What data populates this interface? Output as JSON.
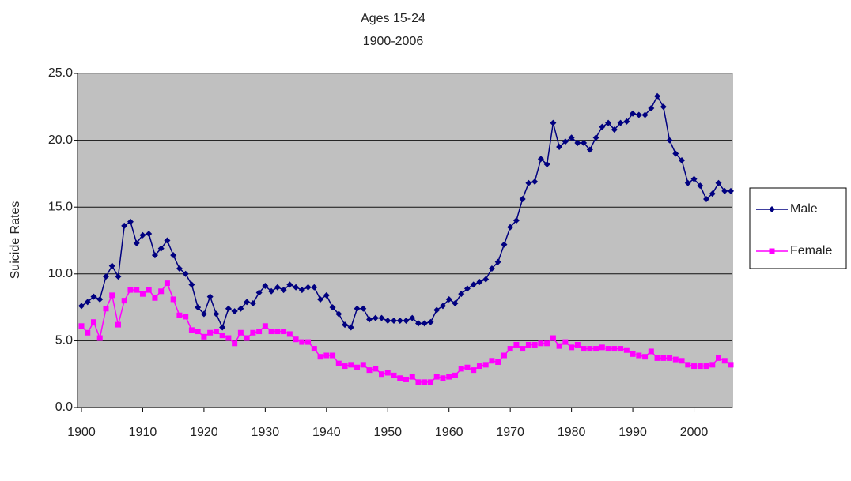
{
  "chart_data": {
    "type": "line",
    "title": "Ages 15-24",
    "subtitle": "1900-2006",
    "ylabel": "Suicide Rates",
    "x": [
      1900,
      1901,
      1902,
      1903,
      1904,
      1905,
      1906,
      1907,
      1908,
      1909,
      1910,
      1911,
      1912,
      1913,
      1914,
      1915,
      1916,
      1917,
      1918,
      1919,
      1920,
      1921,
      1922,
      1923,
      1924,
      1925,
      1926,
      1927,
      1928,
      1929,
      1930,
      1931,
      1932,
      1933,
      1934,
      1935,
      1936,
      1937,
      1938,
      1939,
      1940,
      1941,
      1942,
      1943,
      1944,
      1945,
      1946,
      1947,
      1948,
      1949,
      1950,
      1951,
      1952,
      1953,
      1954,
      1955,
      1956,
      1957,
      1958,
      1959,
      1960,
      1961,
      1962,
      1963,
      1964,
      1965,
      1966,
      1967,
      1968,
      1969,
      1970,
      1971,
      1972,
      1973,
      1974,
      1975,
      1976,
      1977,
      1978,
      1979,
      1980,
      1981,
      1982,
      1983,
      1984,
      1985,
      1986,
      1987,
      1988,
      1989,
      1990,
      1991,
      1992,
      1993,
      1994,
      1995,
      1996,
      1997,
      1998,
      1999,
      2000,
      2001,
      2002,
      2003,
      2004,
      2005,
      2006
    ],
    "series": [
      {
        "name": "Male",
        "color": "#000080",
        "marker": "diamond",
        "values": [
          7.6,
          7.9,
          8.3,
          8.1,
          9.8,
          10.6,
          9.8,
          13.6,
          13.9,
          12.3,
          12.9,
          13.0,
          11.4,
          11.9,
          12.5,
          11.4,
          10.4,
          10.0,
          9.2,
          7.5,
          7.0,
          8.3,
          7.0,
          6.0,
          7.4,
          7.2,
          7.4,
          7.9,
          7.8,
          8.6,
          9.1,
          8.7,
          9.0,
          8.8,
          9.2,
          9.0,
          8.8,
          9.0,
          9.0,
          8.1,
          8.4,
          7.5,
          7.0,
          6.2,
          6.0,
          7.4,
          7.4,
          6.6,
          6.7,
          6.7,
          6.5,
          6.5,
          6.5,
          6.5,
          6.7,
          6.3,
          6.3,
          6.4,
          7.3,
          7.6,
          8.1,
          7.8,
          8.5,
          8.9,
          9.2,
          9.4,
          9.6,
          10.4,
          10.9,
          12.2,
          13.5,
          14.0,
          15.6,
          16.8,
          16.9,
          18.6,
          18.2,
          21.3,
          19.5,
          19.9,
          20.2,
          19.8,
          19.8,
          19.3,
          20.2,
          21.0,
          21.3,
          20.8,
          21.3,
          21.4,
          22.0,
          21.9,
          21.9,
          22.4,
          23.3,
          22.5,
          20.0,
          19.0,
          18.5,
          16.8,
          17.1,
          16.6,
          15.6,
          16.0,
          16.8,
          16.2,
          16.2
        ]
      },
      {
        "name": "Female",
        "color": "#ff00ff",
        "marker": "square",
        "values": [
          6.1,
          5.6,
          6.4,
          5.2,
          7.4,
          8.4,
          6.2,
          8.0,
          8.8,
          8.8,
          8.5,
          8.8,
          8.2,
          8.7,
          9.3,
          8.1,
          6.9,
          6.8,
          5.8,
          5.7,
          5.3,
          5.6,
          5.7,
          5.4,
          5.2,
          4.8,
          5.6,
          5.2,
          5.6,
          5.7,
          6.1,
          5.7,
          5.7,
          5.7,
          5.5,
          5.1,
          4.9,
          4.9,
          4.4,
          3.8,
          3.9,
          3.9,
          3.3,
          3.1,
          3.2,
          3.0,
          3.2,
          2.8,
          2.9,
          2.5,
          2.6,
          2.4,
          2.2,
          2.1,
          2.3,
          1.9,
          1.9,
          1.9,
          2.3,
          2.2,
          2.3,
          2.4,
          2.9,
          3.0,
          2.8,
          3.1,
          3.2,
          3.5,
          3.4,
          3.9,
          4.4,
          4.7,
          4.4,
          4.7,
          4.7,
          4.8,
          4.8,
          5.2,
          4.6,
          4.9,
          4.5,
          4.7,
          4.4,
          4.4,
          4.4,
          4.5,
          4.4,
          4.4,
          4.4,
          4.3,
          4.0,
          3.9,
          3.8,
          4.2,
          3.7,
          3.7,
          3.7,
          3.6,
          3.5,
          3.2,
          3.1,
          3.1,
          3.1,
          3.2,
          3.7,
          3.5,
          3.2
        ]
      }
    ],
    "xlim": [
      1900,
      2006
    ],
    "xticks": [
      1900,
      1910,
      1920,
      1930,
      1940,
      1950,
      1960,
      1970,
      1980,
      1990,
      2000
    ],
    "ylim": [
      0,
      25
    ],
    "yticks": [
      {
        "value": 0,
        "label": "0.0"
      },
      {
        "value": 5,
        "label": "5.0"
      },
      {
        "value": 10,
        "label": "10.0"
      },
      {
        "value": 15,
        "label": "15.0"
      },
      {
        "value": 20,
        "label": "20.0"
      },
      {
        "value": 25,
        "label": "25.0"
      }
    ],
    "grid": true,
    "legend": "right",
    "plot_background": "#c0c0c0"
  }
}
